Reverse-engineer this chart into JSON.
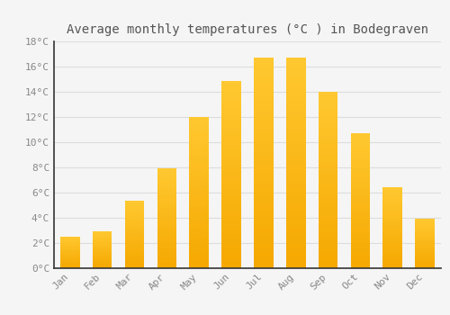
{
  "months": [
    "Jan",
    "Feb",
    "Mar",
    "Apr",
    "May",
    "Jun",
    "Jul",
    "Aug",
    "Sep",
    "Oct",
    "Nov",
    "Dec"
  ],
  "values": [
    2.5,
    2.9,
    5.3,
    7.9,
    12.0,
    14.8,
    16.7,
    16.7,
    14.0,
    10.7,
    6.4,
    3.9
  ],
  "bar_color_bottom": "#F5A800",
  "bar_color_top": "#FFC830",
  "title": "Average monthly temperatures (°C ) in Bodegraven",
  "ylim": [
    0,
    18
  ],
  "ytick_step": 2,
  "background_color": "#F5F5F5",
  "grid_color": "#DDDDDD",
  "title_fontsize": 10,
  "tick_fontsize": 8,
  "font_family": "monospace",
  "tick_color": "#888888",
  "title_color": "#555555",
  "spine_color": "#333333",
  "bar_width": 0.6
}
